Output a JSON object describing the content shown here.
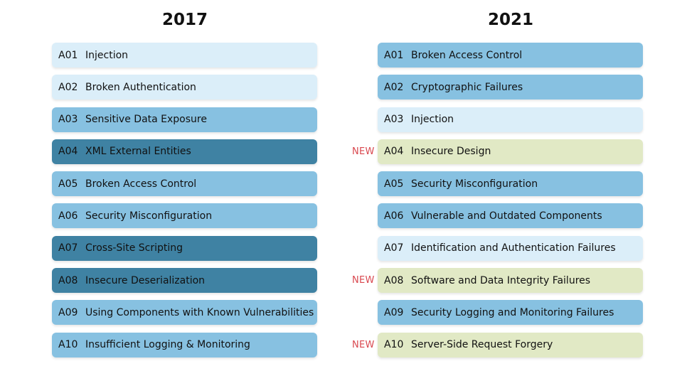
{
  "columns": [
    {
      "year": "2017",
      "items": [
        {
          "code": "A01",
          "label": "Injection",
          "level": "light"
        },
        {
          "code": "A02",
          "label": "Broken Authentication",
          "level": "light"
        },
        {
          "code": "A03",
          "label": "Sensitive Data Exposure",
          "level": "mid"
        },
        {
          "code": "A04",
          "label": "XML External Entities",
          "level": "dark"
        },
        {
          "code": "A05",
          "label": "Broken Access Control",
          "level": "mid"
        },
        {
          "code": "A06",
          "label": "Security Misconfiguration",
          "level": "mid"
        },
        {
          "code": "A07",
          "label": "Cross-Site Scripting",
          "level": "dark"
        },
        {
          "code": "A08",
          "label": "Insecure Deserialization",
          "level": "dark"
        },
        {
          "code": "A09",
          "label": "Using Components with Known Vulnerabilities",
          "level": "mid"
        },
        {
          "code": "A10",
          "label": "Insufficient Logging & Monitoring",
          "level": "mid"
        }
      ]
    },
    {
      "year": "2021",
      "items": [
        {
          "code": "A01",
          "label": "Broken Access Control",
          "level": "mid"
        },
        {
          "code": "A02",
          "label": "Cryptographic Failures",
          "level": "mid"
        },
        {
          "code": "A03",
          "label": "Injection",
          "level": "light"
        },
        {
          "code": "A04",
          "label": "Insecure Design",
          "level": "green",
          "tag": "NEW"
        },
        {
          "code": "A05",
          "label": "Security Misconfiguration",
          "level": "mid"
        },
        {
          "code": "A06",
          "label": "Vulnerable and Outdated Components",
          "level": "mid"
        },
        {
          "code": "A07",
          "label": "Identification and Authentication Failures",
          "level": "light"
        },
        {
          "code": "A08",
          "label": "Software and Data Integrity Failures",
          "level": "green",
          "tag": "NEW"
        },
        {
          "code": "A09",
          "label": "Security Logging and Monitoring Failures",
          "level": "mid"
        },
        {
          "code": "A10",
          "label": "Server-Side Request Forgery",
          "level": "green",
          "tag": "NEW"
        }
      ]
    }
  ],
  "colors": {
    "light": "#dbeef9",
    "mid": "#87c1e1",
    "dark": "#3f82a3",
    "green": "#e1e9c5",
    "new_tag": "#d9484f"
  }
}
